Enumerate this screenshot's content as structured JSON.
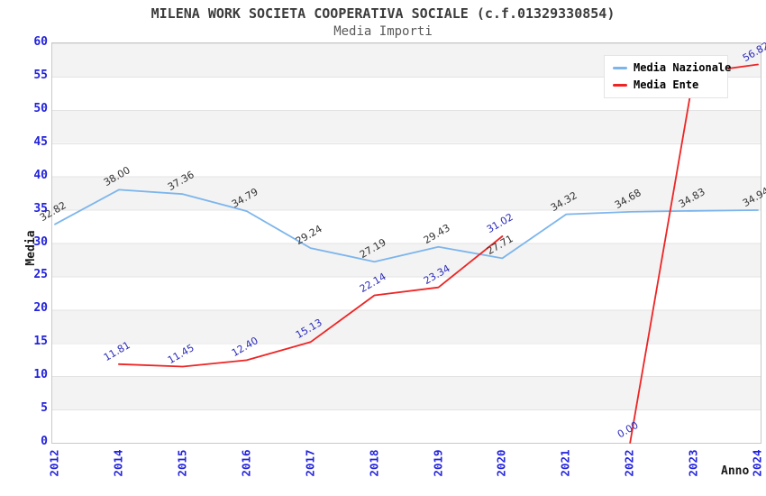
{
  "title": "MILENA WORK SOCIETA COOPERATIVA SOCIALE (c.f.01329330854)",
  "subtitle": "Media Importi",
  "legend": {
    "position": "top-right",
    "items": [
      {
        "label": "Media Nazionale",
        "color": "#7cb5ec"
      },
      {
        "label": "Media Ente",
        "color": "#ee2424"
      }
    ]
  },
  "axes": {
    "y_title": "Media",
    "x_title": "Anno",
    "tick_color": "#2222dd",
    "y_ticks": [
      0,
      5,
      10,
      15,
      20,
      25,
      30,
      35,
      40,
      45,
      50,
      55,
      60
    ]
  },
  "chart_data": {
    "type": "line",
    "title": "MILENA WORK SOCIETA COOPERATIVA SOCIALE (c.f.01329330854)",
    "subtitle": "Media Importi",
    "xlabel": "Anno",
    "ylabel": "Media",
    "ylim": [
      0,
      60
    ],
    "y_tick_step": 5,
    "grid": "horizontal-bands-on",
    "legend_position": "top-right",
    "categories": [
      "2012",
      "2014",
      "2015",
      "2016",
      "2017",
      "2018",
      "2019",
      "2020",
      "2021",
      "2022",
      "2023",
      "2024"
    ],
    "series": [
      {
        "name": "Media Nazionale",
        "color": "#7cb5ec",
        "label_color": "#333333",
        "values": [
          32.82,
          38.0,
          37.36,
          34.79,
          29.24,
          27.19,
          29.43,
          27.71,
          34.32,
          34.68,
          34.83,
          34.94
        ],
        "labels": [
          "32.82",
          "38.00",
          "37.36",
          "34.79",
          "29.24",
          "27.19",
          "29.43",
          "27.71",
          "34.32",
          "34.68",
          "34.83",
          "34.94"
        ]
      },
      {
        "name": "Media Ente",
        "color": "#ee2424",
        "label_color": "#2b2bbb",
        "values": [
          null,
          11.81,
          11.45,
          12.4,
          15.13,
          22.14,
          23.34,
          31.02,
          null,
          0,
          55.5,
          56.82
        ],
        "labels": [
          "",
          "11.81",
          "11.45",
          "12.40",
          "15.13",
          "22.14",
          "23.34",
          "31.02",
          "",
          "0.00",
          "",
          "56.82"
        ]
      }
    ]
  }
}
